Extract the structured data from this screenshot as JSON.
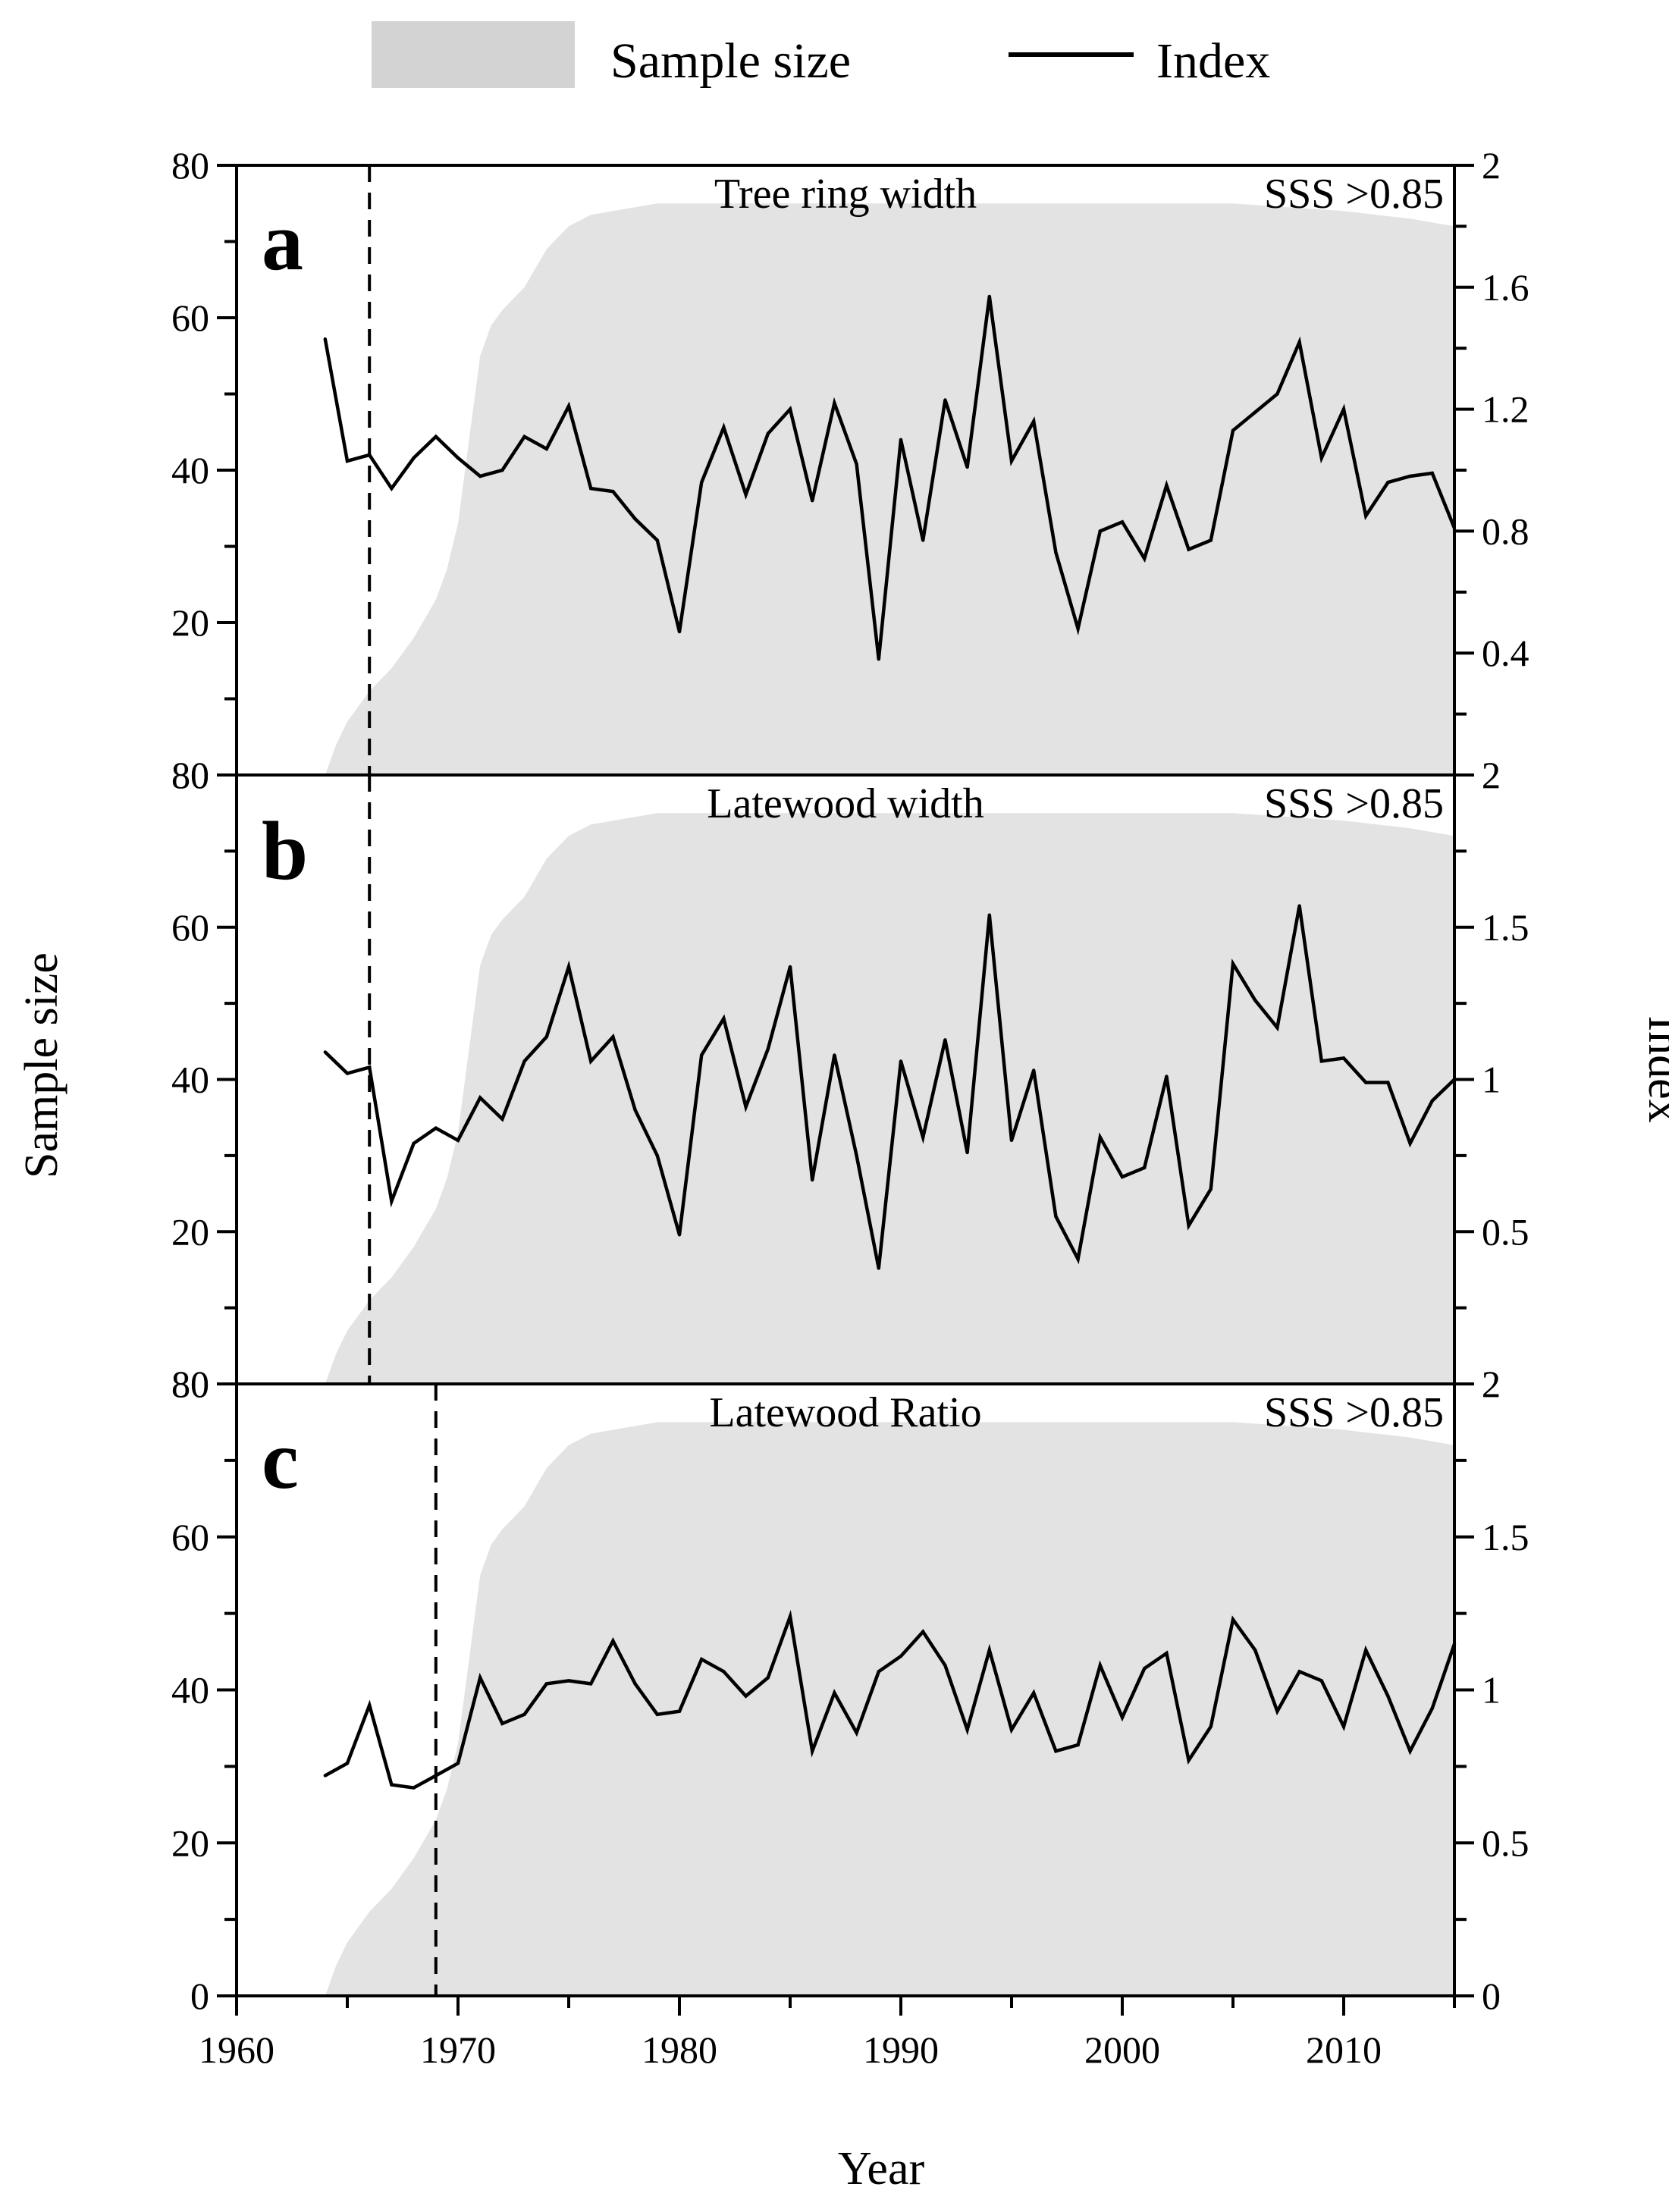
{
  "legend": {
    "sample_size_label": "Sample size",
    "index_label": "Index"
  },
  "axes": {
    "x_title": "Year",
    "left_title": "Sample size",
    "right_title": "Index"
  },
  "colors": {
    "area_fill": "#e3e3e3",
    "legend_swatch": "#d3d3d3",
    "line": "#000000"
  },
  "chart_data": {
    "type": "line",
    "shared_x": {
      "label": "Year",
      "range": [
        1960,
        2015
      ],
      "ticks": [
        1960,
        1970,
        1980,
        1990,
        2000,
        2010
      ],
      "tick_labels": [
        "1960",
        "1970",
        "1980",
        "1990",
        "2000",
        "2010"
      ]
    },
    "sample_size": {
      "name": "Sample size",
      "type": "area",
      "points": [
        [
          1964,
          0
        ],
        [
          1964.5,
          4
        ],
        [
          1965,
          7
        ],
        [
          1966,
          11
        ],
        [
          1967,
          14
        ],
        [
          1968,
          18
        ],
        [
          1969,
          23
        ],
        [
          1969.5,
          27
        ],
        [
          1970,
          33
        ],
        [
          1970.5,
          44
        ],
        [
          1971,
          55
        ],
        [
          1971.5,
          59
        ],
        [
          1972,
          61
        ],
        [
          1973,
          64
        ],
        [
          1974,
          69
        ],
        [
          1975,
          72
        ],
        [
          1976,
          73.5
        ],
        [
          1977,
          74
        ],
        [
          1978,
          74.5
        ],
        [
          1979,
          75
        ],
        [
          1985,
          75
        ],
        [
          1990,
          75
        ],
        [
          1995,
          75
        ],
        [
          2000,
          75
        ],
        [
          2005,
          75
        ],
        [
          2010,
          74
        ],
        [
          2013,
          73
        ],
        [
          2015,
          72
        ],
        [
          2015,
          0
        ]
      ]
    },
    "panels": [
      {
        "letter": "a",
        "title": "Tree ring width",
        "sss_label": "SSS >0.85",
        "sss_threshold_year": 1966,
        "left_axis": {
          "range": [
            0,
            80
          ],
          "ticks": [
            20,
            40,
            60,
            80
          ],
          "tick_labels": [
            "20",
            "40",
            "60",
            "80"
          ],
          "bottom_label": "80"
        },
        "right_axis": {
          "range": [
            0,
            2
          ],
          "ticks": [
            0.4,
            0.8,
            1.2,
            1.6,
            2
          ],
          "tick_labels": [
            "0.4",
            "0.8",
            "1.2",
            "1.6",
            "2"
          ],
          "bottom_label": "2"
        },
        "index": {
          "years": [
            1964,
            1965,
            1966,
            1967,
            1968,
            1969,
            1970,
            1971,
            1972,
            1973,
            1974,
            1975,
            1976,
            1977,
            1978,
            1979,
            1980,
            1981,
            1982,
            1983,
            1984,
            1985,
            1986,
            1987,
            1988,
            1989,
            1990,
            1991,
            1992,
            1993,
            1994,
            1995,
            1996,
            1997,
            1998,
            1999,
            2000,
            2001,
            2002,
            2003,
            2004,
            2005,
            2006,
            2007,
            2008,
            2009,
            2010,
            2011,
            2012,
            2013,
            2014,
            2015
          ],
          "values": [
            1.43,
            1.03,
            1.05,
            0.94,
            1.04,
            1.11,
            1.04,
            0.98,
            1.0,
            1.11,
            1.07,
            1.21,
            0.94,
            0.93,
            0.84,
            0.77,
            0.47,
            0.96,
            1.14,
            0.92,
            1.12,
            1.2,
            0.9,
            1.22,
            1.02,
            0.38,
            1.1,
            0.77,
            1.23,
            1.01,
            1.57,
            1.03,
            1.16,
            0.73,
            0.48,
            0.8,
            0.83,
            0.71,
            0.95,
            0.74,
            0.77,
            1.13,
            1.19,
            1.25,
            1.42,
            1.04,
            1.2,
            0.85,
            0.96,
            0.98,
            0.99,
            0.81
          ]
        }
      },
      {
        "letter": "b",
        "title": "Latewood width",
        "sss_label": "SSS >0.85",
        "sss_threshold_year": 1966,
        "left_axis": {
          "range": [
            0,
            80
          ],
          "ticks": [
            20,
            40,
            60,
            80
          ],
          "tick_labels": [
            "20",
            "40",
            "60",
            "80"
          ],
          "bottom_label": "80"
        },
        "right_axis": {
          "range": [
            0,
            2
          ],
          "ticks": [
            0.5,
            1,
            1.5,
            2
          ],
          "tick_labels": [
            "0.5",
            "1",
            "1.5",
            "2"
          ],
          "bottom_label": "2"
        },
        "index": {
          "years": [
            1964,
            1965,
            1966,
            1967,
            1968,
            1969,
            1970,
            1971,
            1972,
            1973,
            1974,
            1975,
            1976,
            1977,
            1978,
            1979,
            1980,
            1981,
            1982,
            1983,
            1984,
            1985,
            1986,
            1987,
            1988,
            1989,
            1990,
            1991,
            1992,
            1993,
            1994,
            1995,
            1996,
            1997,
            1998,
            1999,
            2000,
            2001,
            2002,
            2003,
            2004,
            2005,
            2006,
            2007,
            2008,
            2009,
            2010,
            2011,
            2012,
            2013,
            2014,
            2015
          ],
          "values": [
            1.09,
            1.02,
            1.04,
            0.6,
            0.79,
            0.84,
            0.8,
            0.94,
            0.87,
            1.06,
            1.14,
            1.37,
            1.06,
            1.14,
            0.9,
            0.75,
            0.49,
            1.08,
            1.2,
            0.91,
            1.1,
            1.37,
            0.67,
            1.08,
            0.75,
            0.38,
            1.06,
            0.81,
            1.13,
            0.76,
            1.54,
            0.8,
            1.03,
            0.55,
            0.41,
            0.81,
            0.68,
            0.71,
            1.01,
            0.52,
            0.64,
            1.38,
            1.26,
            1.17,
            1.57,
            1.06,
            1.07,
            0.99,
            0.99,
            0.79,
            0.93,
            1.0
          ]
        }
      },
      {
        "letter": "c",
        "title": "Latewood Ratio",
        "sss_label": "SSS >0.85",
        "sss_threshold_year": 1969,
        "left_axis": {
          "range": [
            0,
            80
          ],
          "ticks": [
            0,
            20,
            40,
            60,
            80
          ],
          "tick_labels": [
            "0",
            "20",
            "40",
            "60",
            "80"
          ],
          "bottom_label": ""
        },
        "right_axis": {
          "range": [
            0,
            2
          ],
          "ticks": [
            0,
            0.5,
            1,
            1.5,
            2
          ],
          "tick_labels": [
            "0",
            "0.5",
            "1",
            "1.5",
            "2"
          ],
          "bottom_label": ""
        },
        "index": {
          "years": [
            1964,
            1965,
            1966,
            1967,
            1968,
            1969,
            1970,
            1971,
            1972,
            1973,
            1974,
            1975,
            1976,
            1977,
            1978,
            1979,
            1980,
            1981,
            1982,
            1983,
            1984,
            1985,
            1986,
            1987,
            1988,
            1989,
            1990,
            1991,
            1992,
            1993,
            1994,
            1995,
            1996,
            1997,
            1998,
            1999,
            2000,
            2001,
            2002,
            2003,
            2004,
            2005,
            2006,
            2007,
            2008,
            2009,
            2010,
            2011,
            2012,
            2013,
            2014,
            2015
          ],
          "values": [
            0.72,
            0.76,
            0.95,
            0.69,
            0.68,
            0.72,
            0.76,
            1.04,
            0.89,
            0.92,
            1.02,
            1.03,
            1.02,
            1.16,
            1.02,
            0.92,
            0.93,
            1.1,
            1.06,
            0.98,
            1.04,
            1.24,
            0.8,
            0.99,
            0.86,
            1.06,
            1.11,
            1.19,
            1.08,
            0.87,
            1.13,
            0.87,
            0.99,
            0.8,
            0.82,
            1.08,
            0.91,
            1.07,
            1.12,
            0.77,
            0.88,
            1.23,
            1.13,
            0.93,
            1.06,
            1.03,
            0.88,
            1.13,
            0.98,
            0.8,
            0.94,
            1.15
          ]
        }
      }
    ]
  }
}
